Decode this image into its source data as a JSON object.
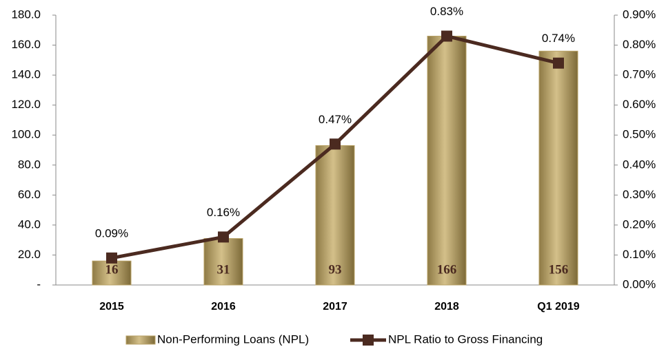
{
  "chart_data": {
    "type": "bar",
    "categories": [
      "2015",
      "2016",
      "2017",
      "2018",
      "Q1 2019"
    ],
    "series": [
      {
        "name": "Non-Performing Loans (NPL)",
        "type": "bar",
        "color": "#b9a266",
        "values": [
          16,
          31,
          93,
          166,
          156
        ]
      },
      {
        "name": "NPL Ratio to Gross Financing",
        "type": "line",
        "axis": "y2",
        "color": "#4b2a20",
        "values": [
          0.09,
          0.16,
          0.47,
          0.83,
          0.74
        ],
        "value_labels": [
          "0.09%",
          "0.16%",
          "0.47%",
          "0.83%",
          "0.74%"
        ]
      }
    ],
    "ylim": [
      0,
      180
    ],
    "yticks": [
      {
        "value": 0,
        "label": "-"
      },
      {
        "value": 20,
        "label": "20.0"
      },
      {
        "value": 40,
        "label": "40.0"
      },
      {
        "value": 60,
        "label": "60.0"
      },
      {
        "value": 80,
        "label": "80.0"
      },
      {
        "value": 100,
        "label": "100.0"
      },
      {
        "value": 120,
        "label": "120.0"
      },
      {
        "value": 140,
        "label": "140.0"
      },
      {
        "value": 160,
        "label": "160.0"
      },
      {
        "value": 180,
        "label": "180.0"
      }
    ],
    "y2lim": [
      0,
      0.9
    ],
    "y2ticks": [
      {
        "value": 0,
        "label": "0.00%"
      },
      {
        "value": 0.1,
        "label": "0.10%"
      },
      {
        "value": 0.2,
        "label": "0.20%"
      },
      {
        "value": 0.3,
        "label": "0.30%"
      },
      {
        "value": 0.4,
        "label": "0.40%"
      },
      {
        "value": 0.5,
        "label": "0.50%"
      },
      {
        "value": 0.6,
        "label": "0.60%"
      },
      {
        "value": 0.7,
        "label": "0.70%"
      },
      {
        "value": 0.8,
        "label": "0.80%"
      },
      {
        "value": 0.9,
        "label": "0.90%"
      }
    ],
    "legend": "bottom"
  }
}
